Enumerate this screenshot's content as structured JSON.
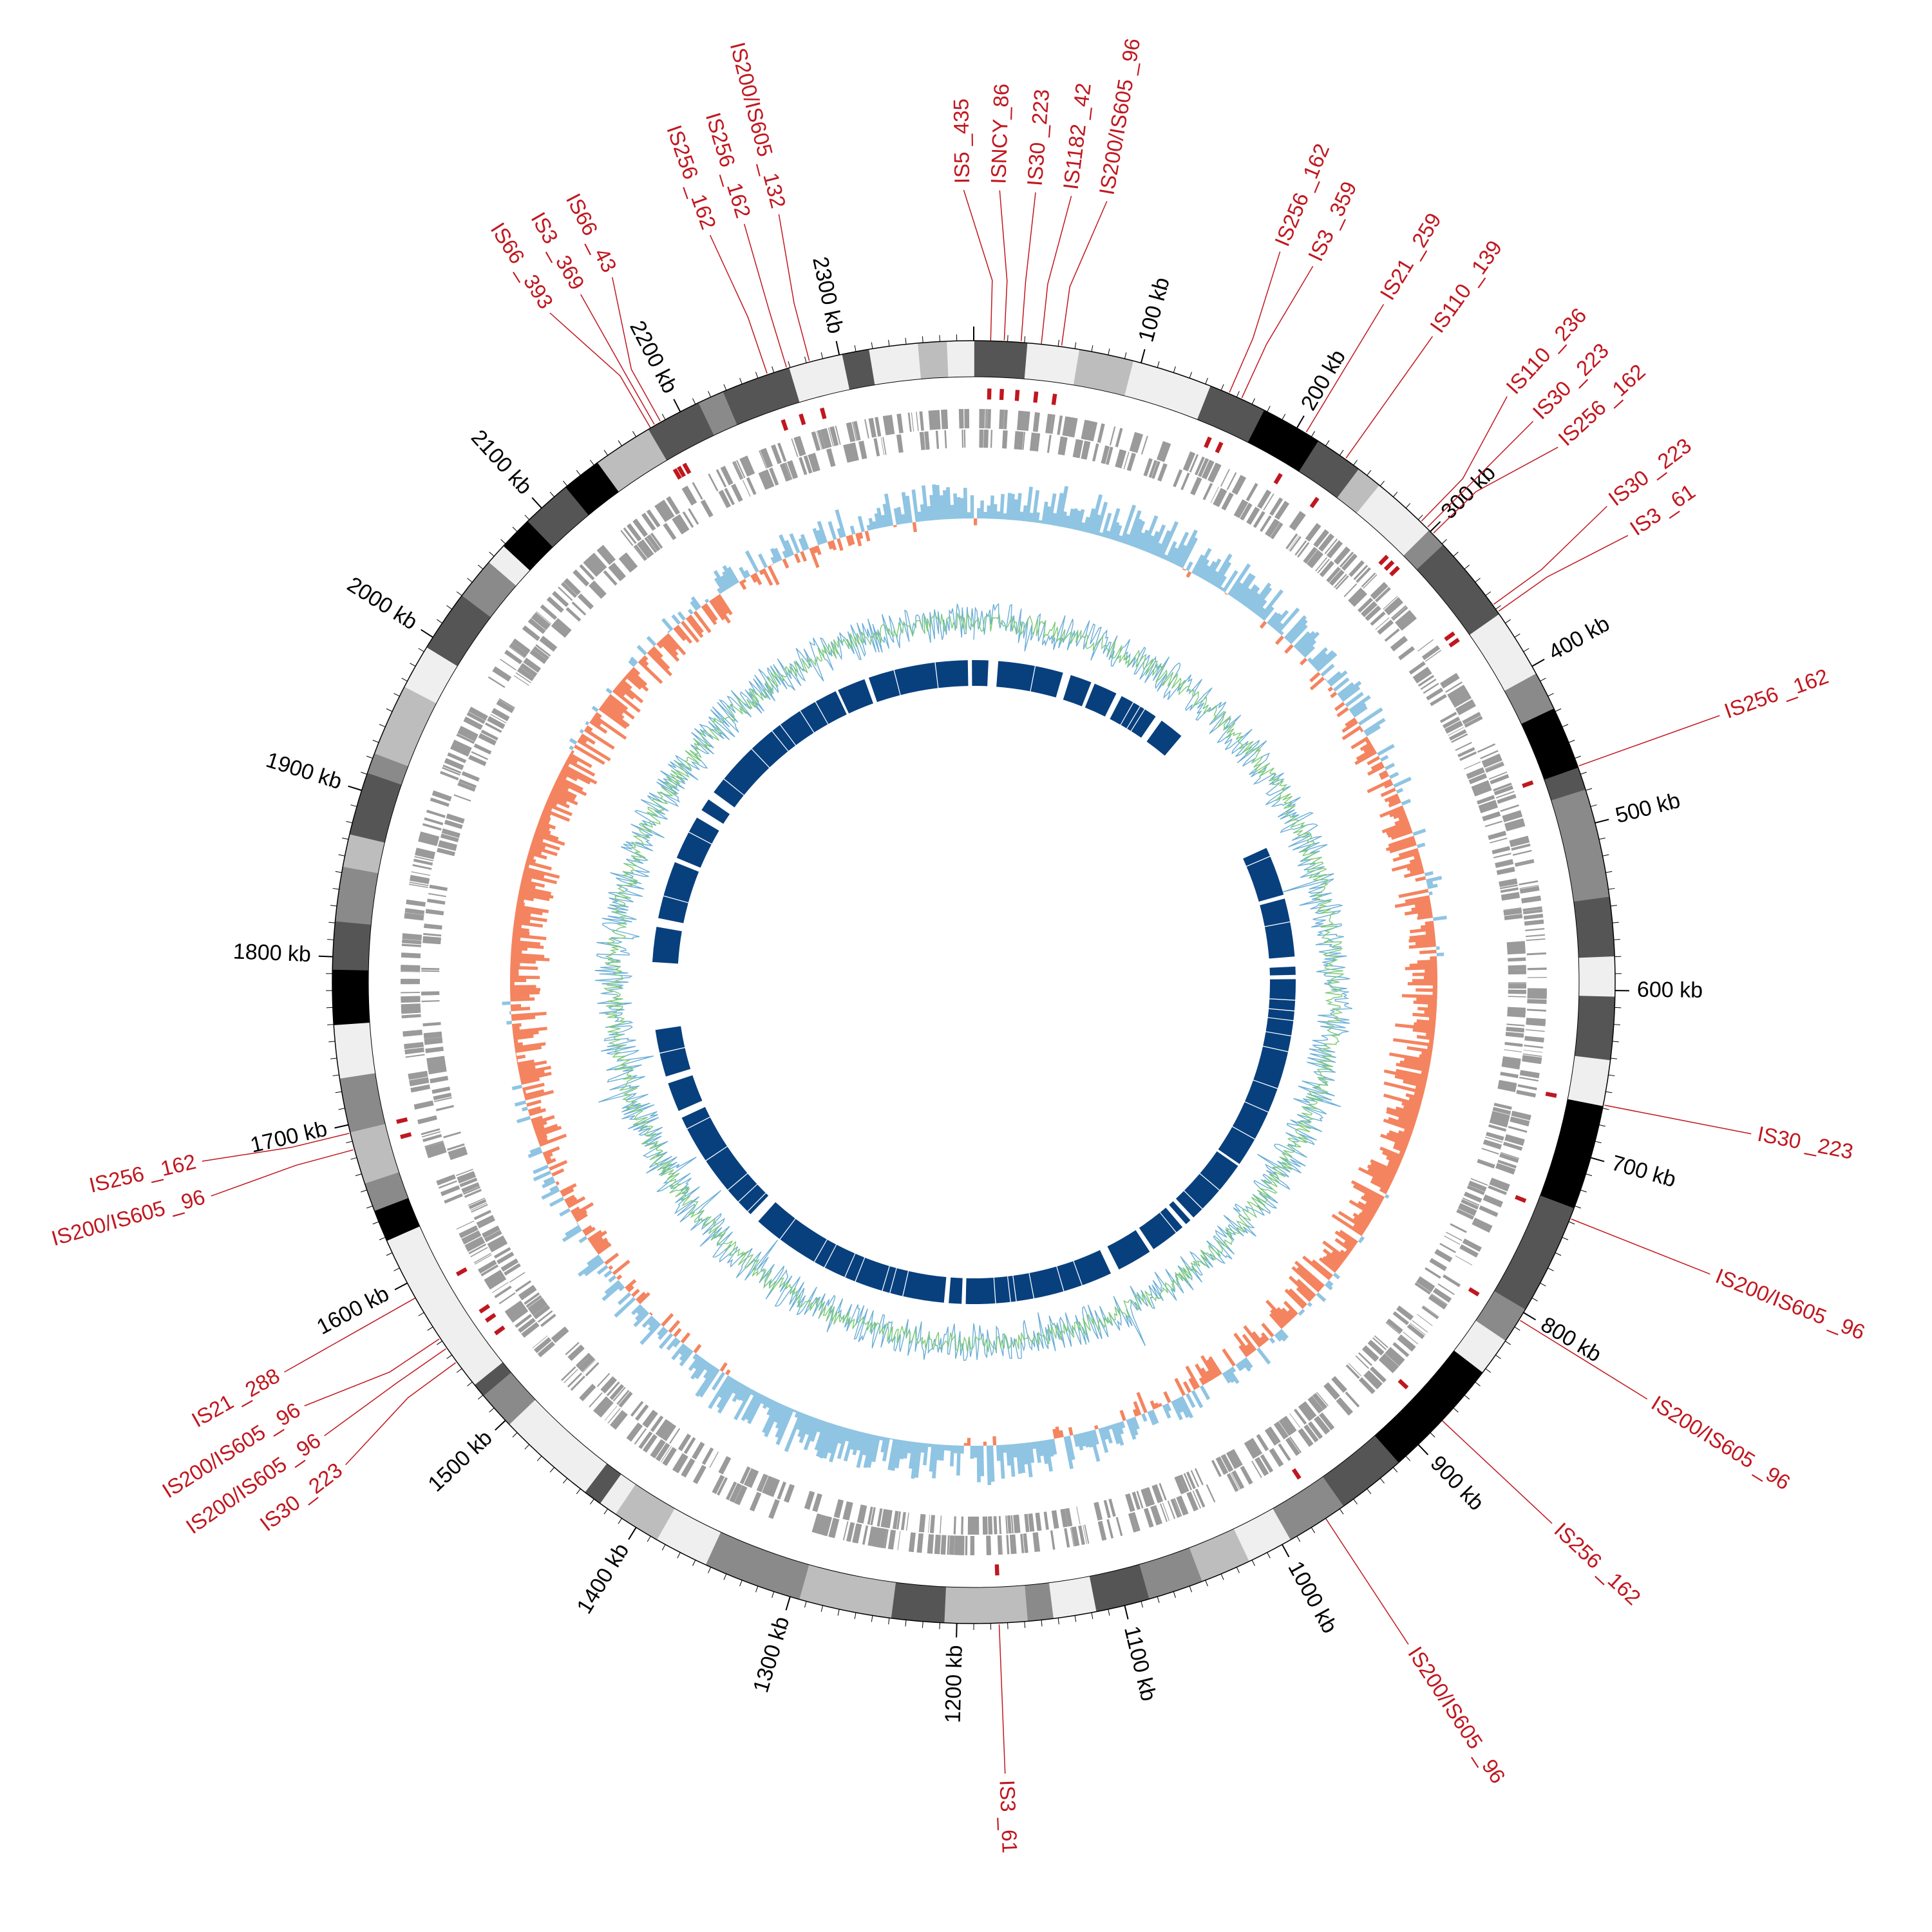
{
  "genome": {
    "total_kb": 2380,
    "tick_labels": [
      "100 kb",
      "200 kb",
      "300 kb",
      "400 kb",
      "500 kb",
      "600 kb",
      "700 kb",
      "800 kb",
      "900 kb",
      "1000 kb",
      "1100 kb",
      "1200 kb",
      "1300 kb",
      "1400 kb",
      "1500 kb",
      "1600 kb",
      "1700 kb",
      "1800 kb",
      "1900 kb",
      "2000 kb",
      "2100 kb",
      "2200 kb",
      "2300 kb"
    ]
  },
  "colors": {
    "is_red": "#c0171f",
    "gc_skew_neg": "#f4845f",
    "gc_skew_pos": "#8fc4e3",
    "gc_content_green": "#7dc97a",
    "gc_content_blue": "#6aaed6",
    "blast_blue": "#08407e",
    "gene_gray": "#9a9a9a",
    "ideogram_shades": [
      "#000000",
      "#555555",
      "#8a8a8a",
      "#bdbdbd",
      "#efefef"
    ]
  },
  "is_elements": [
    {
      "label": "IS5 _435",
      "kb": 10
    },
    {
      "label": "ISNCY_86",
      "kb": 18
    },
    {
      "label": "IS30 _223",
      "kb": 28
    },
    {
      "label": "IS1182 _42",
      "kb": 40
    },
    {
      "label": "IS200/IS605 _96",
      "kb": 52
    },
    {
      "label": "IS256 _162",
      "kb": 155
    },
    {
      "label": "IS3 _359",
      "kb": 163
    },
    {
      "label": "IS21 _259",
      "kb": 206
    },
    {
      "label": "IS110 _139",
      "kb": 234
    },
    {
      "label": "IS110 _236",
      "kb": 292
    },
    {
      "label": "IS30 _223",
      "kb": 297
    },
    {
      "label": "IS256 _162",
      "kb": 302
    },
    {
      "label": "IS30 _223",
      "kb": 357
    },
    {
      "label": "IS3 _61",
      "kb": 362
    },
    {
      "label": "IS256 _162",
      "kb": 465
    },
    {
      "label": "IS30 _223",
      "kb": 668
    },
    {
      "label": "IS200/IS605 _96",
      "kb": 738
    },
    {
      "label": "IS200/IS605 _96",
      "kb": 805
    },
    {
      "label": "IS256 _162",
      "kb": 880
    },
    {
      "label": "IS200/IS605 _96",
      "kb": 970
    },
    {
      "label": "IS3 _61",
      "kb": 1175
    },
    {
      "label": "IS30 _223",
      "kb": 1545
    },
    {
      "label": "IS200/IS605 _96",
      "kb": 1555
    },
    {
      "label": "IS200/IS605 _96",
      "kb": 1562
    },
    {
      "label": "IS21 _288",
      "kb": 1590
    },
    {
      "label": "IS200/IS605 _96",
      "kb": 1685
    },
    {
      "label": "IS256 _162",
      "kb": 1695
    },
    {
      "label": "IS66 _393",
      "kb": 2180
    },
    {
      "label": "IS3 _369",
      "kb": 2183
    },
    {
      "label": "IS66 _43",
      "kb": 2187
    },
    {
      "label": "IS256 _162",
      "kb": 2256
    },
    {
      "label": "IS256 _162",
      "kb": 2268
    },
    {
      "label": "IS200/IS605 _132",
      "kb": 2282
    }
  ]
}
